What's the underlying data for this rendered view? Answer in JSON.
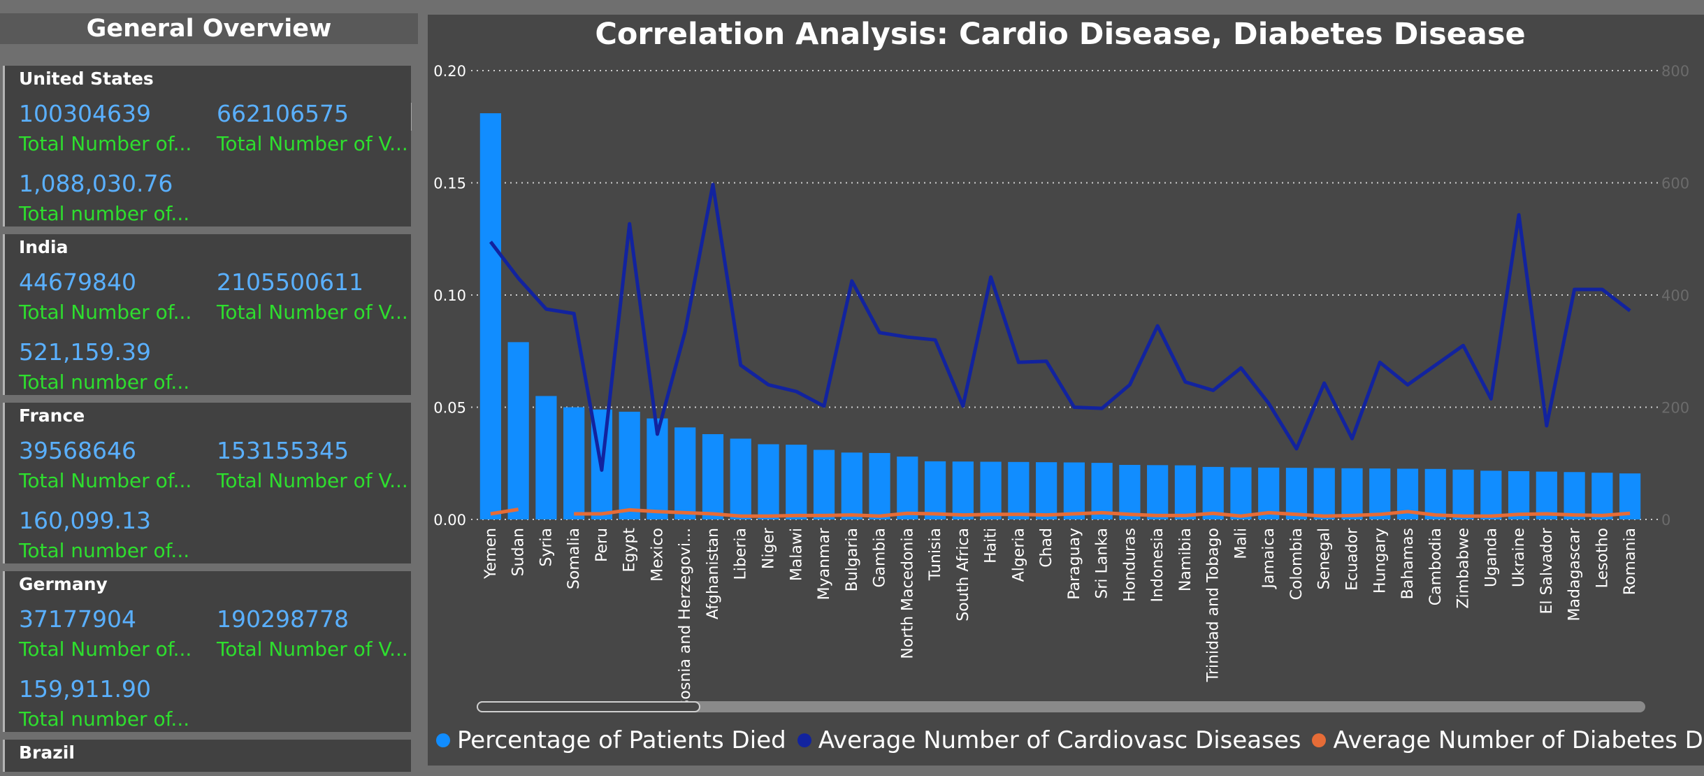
{
  "overview": {
    "title": "General Overview",
    "cards": [
      {
        "country": "United States",
        "value_a": "100304639",
        "label_a": "Total Number of...",
        "value_b": "662106575",
        "label_b": "Total Number of V...",
        "value_c": "1,088,030.76",
        "label_c": "Total number of..."
      },
      {
        "country": "India",
        "value_a": "44679840",
        "label_a": "Total Number of...",
        "value_b": "2105500611",
        "label_b": "Total Number of V...",
        "value_c": "521,159.39",
        "label_c": "Total number of..."
      },
      {
        "country": "France",
        "value_a": "39568646",
        "label_a": "Total Number of...",
        "value_b": "153155345",
        "label_b": "Total Number of V...",
        "value_c": "160,099.13",
        "label_c": "Total number of..."
      },
      {
        "country": "Germany",
        "value_a": "37177904",
        "label_a": "Total Number of...",
        "value_b": "190298778",
        "label_b": "Total Number of V...",
        "value_c": "159,911.90",
        "label_c": "Total number of..."
      },
      {
        "country": "Brazil"
      }
    ]
  },
  "chart_data": {
    "type": "bar",
    "title": "Correlation Analysis: Cardio Disease, Diabetes Disease",
    "categories": [
      "Yemen",
      "Sudan",
      "Syria",
      "Somalia",
      "Peru",
      "Egypt",
      "Mexico",
      "Bosnia and Herzegovi...",
      "Afghanistan",
      "Liberia",
      "Niger",
      "Malawi",
      "Myanmar",
      "Bulgaria",
      "Gambia",
      "North Macedonia",
      "Tunisia",
      "South Africa",
      "Haiti",
      "Algeria",
      "Chad",
      "Paraguay",
      "Sri Lanka",
      "Honduras",
      "Indonesia",
      "Namibia",
      "Trinidad and Tobago",
      "Mali",
      "Jamaica",
      "Colombia",
      "Senegal",
      "Ecuador",
      "Hungary",
      "Bahamas",
      "Cambodia",
      "Zimbabwe",
      "Uganda",
      "Ukraine",
      "El Salvador",
      "Madagascar",
      "Lesotho",
      "Romania"
    ],
    "y_left": {
      "ticks": [
        "0.00",
        "0.05",
        "0.10",
        "0.15",
        "0.20"
      ],
      "range": [
        0,
        0.2
      ]
    },
    "y_right": {
      "ticks": [
        "0",
        "200",
        "400",
        "600",
        "800"
      ],
      "range": [
        0,
        800
      ]
    },
    "grid": true,
    "legend_position": "bottom",
    "series": [
      {
        "name": "Percentage of Patients Died",
        "axis": "left",
        "kind": "bar",
        "color": "#118dff",
        "values": [
          0.181,
          0.079,
          0.055,
          0.05,
          0.049,
          0.048,
          0.045,
          0.041,
          0.038,
          0.036,
          0.0335,
          0.0333,
          0.031,
          0.0298,
          0.0296,
          0.028,
          0.0259,
          0.0258,
          0.0257,
          0.0256,
          0.0255,
          0.0254,
          0.0252,
          0.0243,
          0.0242,
          0.0241,
          0.0234,
          0.0232,
          0.0231,
          0.023,
          0.0229,
          0.0228,
          0.0227,
          0.0226,
          0.0225,
          0.0222,
          0.0217,
          0.0215,
          0.0213,
          0.0211,
          0.0208,
          0.0205
        ]
      },
      {
        "name": "Average Number of Cardiovasc Diseases",
        "axis": "right",
        "kind": "line",
        "color": "#12239e",
        "values": [
          495,
          430,
          375,
          367,
          88,
          527,
          152,
          335,
          597,
          275,
          240,
          228,
          202,
          425,
          333,
          325,
          320,
          202,
          432,
          280,
          282,
          200,
          198,
          240,
          345,
          245,
          230,
          270,
          207,
          126,
          243,
          144,
          280,
          240,
          275,
          310,
          215,
          543,
          167,
          410,
          410,
          372
        ]
      },
      {
        "name": "Average Number of Diabetes Diseas...",
        "axis": "right",
        "kind": "line",
        "color": "#e66c37",
        "values": [
          10,
          18,
          null,
          10,
          10,
          17,
          14,
          12,
          10,
          6,
          6,
          7,
          7,
          8,
          6,
          11,
          10,
          8,
          9,
          9,
          8,
          10,
          12,
          9,
          7,
          7,
          11,
          6,
          12,
          9,
          6,
          7,
          9,
          14,
          8,
          6,
          6,
          9,
          10,
          8,
          7,
          11
        ]
      }
    ]
  },
  "legend": {
    "items": [
      {
        "label": "Percentage of Patients Died",
        "color": "#118dff"
      },
      {
        "label": "Average Number of Cardiovasc Diseases",
        "color": "#12239e"
      },
      {
        "label": "Average Number of Diabetes Diseas...",
        "color": "#e66c37"
      }
    ]
  }
}
